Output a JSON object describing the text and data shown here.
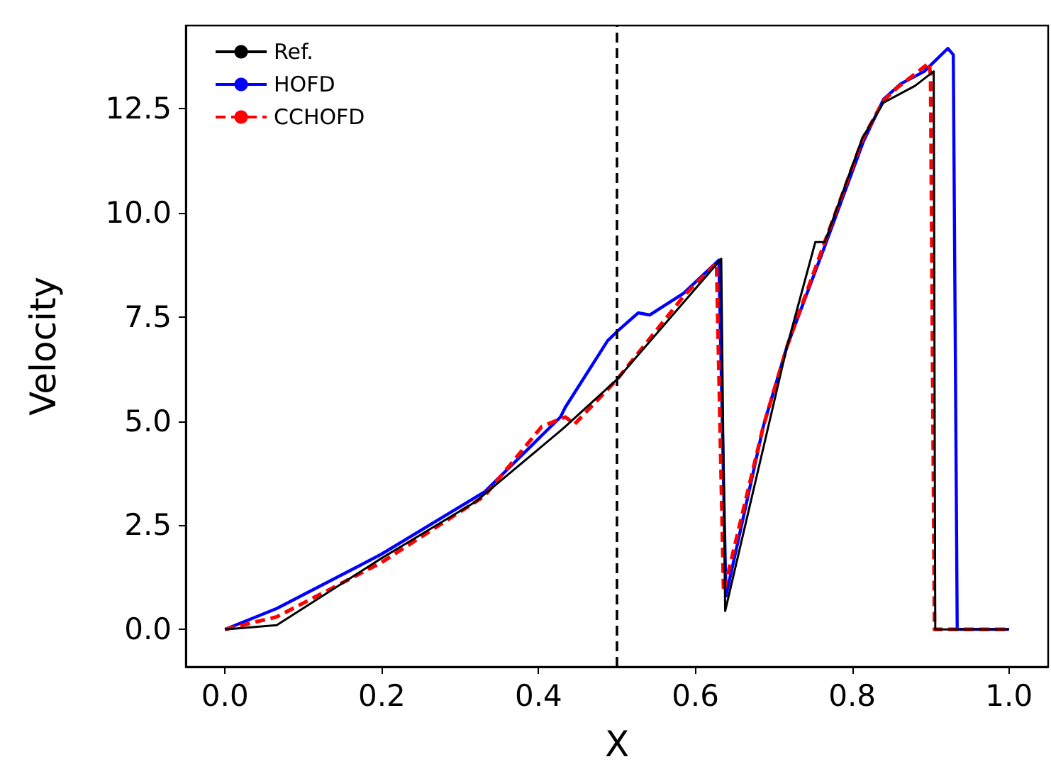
{
  "chart_data": {
    "type": "line",
    "xlabel": "X",
    "ylabel": "Velocity",
    "xlim": [
      -0.05,
      1.05
    ],
    "ylim": [
      -0.9,
      14.5
    ],
    "xticks": [
      {
        "value": 0,
        "label": "0.0"
      },
      0.2,
      0.4,
      0.6,
      0.8,
      {
        "value": 1,
        "label": "1.0"
      }
    ],
    "yticks": [
      {
        "value": 0,
        "label": "0.0"
      },
      2.5,
      {
        "value": 5,
        "label": "5.0"
      },
      7.5,
      {
        "value": 10,
        "label": "10.0"
      },
      12.5
    ],
    "grid": false,
    "legend": "top left",
    "marker": "none",
    "ref_lines": [
      {
        "axis": "x",
        "value": 0.5,
        "color": "#000000",
        "line_style": "dashed"
      }
    ],
    "series": [
      {
        "name": "Ref.",
        "color": "#000000",
        "line_style": "solid",
        "x": [
          0,
          0.066,
          0.199,
          0.32,
          0.428,
          0.434,
          0.5,
          0.633,
          0.638,
          0.717,
          0.753,
          0.765,
          0.813,
          0.84,
          0.88,
          0.904,
          0.906,
          1.0
        ],
        "values": [
          0,
          0.1,
          1.7,
          3.07,
          4.77,
          4.87,
          6.0,
          8.9,
          0.44,
          6.8,
          9.3,
          9.3,
          11.8,
          12.65,
          13.05,
          13.4,
          0,
          0
        ]
      },
      {
        "name": "HOFD",
        "color": "#0000ff",
        "line_style": "solid",
        "x": [
          0,
          0.066,
          0.199,
          0.331,
          0.428,
          0.434,
          0.488,
          0.5,
          0.527,
          0.542,
          0.585,
          0.63,
          0.639,
          0.687,
          0.717,
          0.765,
          0.814,
          0.84,
          0.862,
          0.892,
          0.922,
          0.929,
          0.934,
          1.0
        ],
        "values": [
          0,
          0.5,
          1.8,
          3.3,
          5.1,
          5.33,
          6.93,
          7.15,
          7.6,
          7.55,
          8.07,
          8.87,
          0.8,
          4.9,
          6.8,
          9.2,
          11.7,
          12.73,
          13.1,
          13.4,
          13.95,
          13.8,
          0,
          0
        ]
      },
      {
        "name": "CCHOFD",
        "color": "#ff0000",
        "line_style": "dashed",
        "x": [
          0,
          0.066,
          0.199,
          0.331,
          0.404,
          0.434,
          0.446,
          0.5,
          0.585,
          0.627,
          0.636,
          0.687,
          0.717,
          0.765,
          0.814,
          0.84,
          0.857,
          0.898,
          0.9,
          0.905,
          1.0
        ],
        "values": [
          0,
          0.3,
          1.6,
          3.2,
          4.87,
          5.1,
          4.93,
          6.0,
          8.0,
          8.8,
          0.9,
          4.9,
          6.8,
          9.3,
          11.8,
          12.7,
          13.0,
          13.6,
          13.3,
          0,
          0
        ]
      }
    ]
  }
}
